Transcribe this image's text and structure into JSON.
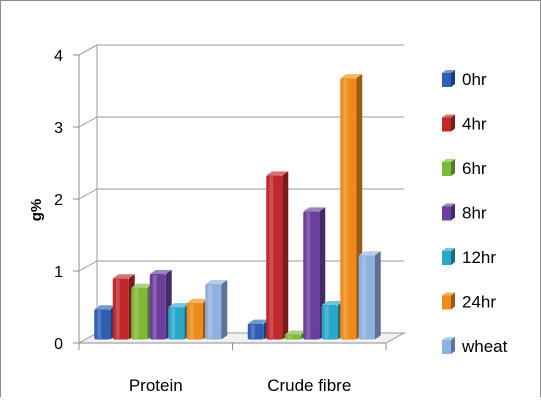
{
  "chart_data": {
    "type": "bar",
    "style": "3d-clustered-column",
    "categories": [
      "Protein",
      "Crude fibre"
    ],
    "series": [
      {
        "name": "0hr",
        "color": "#2e5fb5",
        "values": [
          0.42,
          0.22
        ]
      },
      {
        "name": "4hr",
        "color": "#c0282b",
        "values": [
          0.85,
          2.28
        ]
      },
      {
        "name": "6hr",
        "color": "#7fb93a",
        "values": [
          0.72,
          0.07
        ]
      },
      {
        "name": "8hr",
        "color": "#6b3f9e",
        "values": [
          0.91,
          1.78
        ]
      },
      {
        "name": "12hr",
        "color": "#2aa7c7",
        "values": [
          0.45,
          0.48
        ]
      },
      {
        "name": "24hr",
        "color": "#f08a1c",
        "values": [
          0.51,
          3.63
        ]
      },
      {
        "name": "wheat",
        "color": "#8fb1e0",
        "values": [
          0.77,
          1.17
        ]
      }
    ],
    "ylabel": "g%",
    "yticks": [
      "0",
      "1",
      "2",
      "3",
      "4"
    ],
    "ylim": [
      0,
      4
    ],
    "grid": true,
    "legend": "right"
  }
}
